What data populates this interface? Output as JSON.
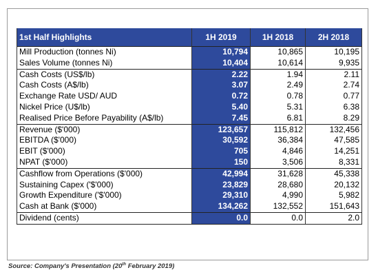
{
  "table": {
    "header": [
      "1st Half Highlights",
      "1H 2019",
      "1H 2018",
      "2H 2018"
    ],
    "sections": [
      [
        [
          "Mill Production (tonnes Ni)",
          "10,794",
          "10,865",
          "10,195"
        ],
        [
          "Sales Volume (tonnes Ni)",
          "10,404",
          "10,614",
          "9,935"
        ]
      ],
      [
        [
          "Cash Costs (US$/lb)",
          "2.22",
          "1.94",
          "2.11"
        ],
        [
          "Cash Costs (A$/lb)",
          "3.07",
          "2.49",
          "2.74"
        ],
        [
          "Exchange Rate USD/ AUD",
          "0.72",
          "0.78",
          "0.77"
        ],
        [
          "Nickel Price (U$/lb)",
          "5.40",
          "5.31",
          "6.38"
        ],
        [
          "Realised Price Before Payability (A$/lb)",
          "7.45",
          "6.81",
          "8.29"
        ]
      ],
      [
        [
          "Revenue ($'000)",
          "123,657",
          "115,812",
          "132,456"
        ],
        [
          "EBITDA ($'000)",
          "30,592",
          "36,384",
          "47,585"
        ],
        [
          "EBIT ($'000)",
          "705",
          "4,846",
          "14,251"
        ],
        [
          "NPAT ($'000)",
          "150",
          "3,506",
          "8,331"
        ]
      ],
      [
        [
          "Cashflow from Operations ($'000)",
          "42,994",
          "31,628",
          "45,338"
        ],
        [
          "Sustaining Capex ('$'000)",
          "23,829",
          "28,680",
          "20,132"
        ],
        [
          "Growth Expenditure ('$'000)",
          "29,310",
          "4,990",
          "5,982"
        ],
        [
          "Cash at Bank ($'000)",
          "134,262",
          "132,552",
          "151,643"
        ]
      ],
      [
        [
          "Dividend (cents)",
          "0.0",
          "0.0",
          "2.0"
        ]
      ]
    ]
  },
  "caption": {
    "text": "Source: Company's Presentation (20",
    "superscript": "th",
    "tail": " February 2019)"
  }
}
